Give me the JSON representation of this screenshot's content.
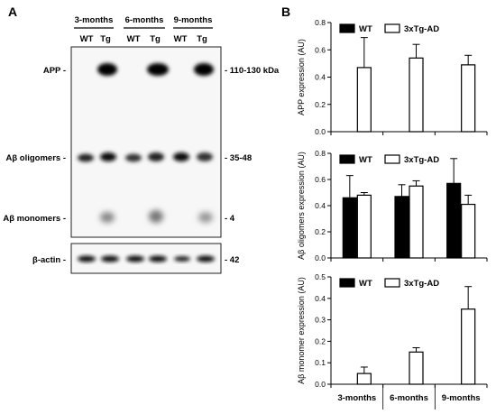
{
  "panels": {
    "a": "A",
    "b": "B"
  },
  "blot": {
    "timepoints": [
      "3-months",
      "6-months",
      "9-months"
    ],
    "lanes": [
      "WT",
      "Tg"
    ],
    "row_labels": [
      "APP -",
      "Aβ oligomers -",
      "Aβ monomers -",
      "β-actin -"
    ],
    "size_markers": [
      "- 110-130 kDa",
      "- 35-48",
      "- 4",
      "- 42"
    ]
  },
  "chart_data": [
    {
      "type": "bar",
      "categories": [
        "3-months",
        "6-months",
        "9-months"
      ],
      "series": [
        {
          "name": "WT",
          "values": [
            null,
            null,
            null
          ],
          "errors": [
            null,
            null,
            null
          ],
          "color": "#000000"
        },
        {
          "name": "3xTg-AD",
          "values": [
            0.47,
            0.54,
            0.49
          ],
          "errors": [
            0.22,
            0.1,
            0.07
          ],
          "color": "#ffffff"
        }
      ],
      "ylabel": "APP expression (AU)",
      "ylim": [
        0,
        0.8
      ],
      "yticks": [
        "0.0",
        "0.2",
        "0.4",
        "0.6",
        "0.8"
      ],
      "ytick_values": [
        0,
        0.2,
        0.4,
        0.6,
        0.8
      ],
      "legend": "top-left"
    },
    {
      "type": "bar",
      "categories": [
        "3-months",
        "6-months",
        "9-months"
      ],
      "series": [
        {
          "name": "WT",
          "values": [
            0.46,
            0.47,
            0.57
          ],
          "errors": [
            0.17,
            0.09,
            0.19
          ],
          "color": "#000000"
        },
        {
          "name": "3xTg-AD",
          "values": [
            0.48,
            0.55,
            0.41
          ],
          "errors": [
            0.02,
            0.04,
            0.07
          ],
          "color": "#ffffff"
        }
      ],
      "ylabel": "Aβ oligomers expression (AU)",
      "ylim": [
        0,
        0.8
      ],
      "yticks": [
        "0.0",
        "0.2",
        "0.4",
        "0.6",
        "0.8"
      ],
      "ytick_values": [
        0,
        0.2,
        0.4,
        0.6,
        0.8
      ],
      "legend": "top-left"
    },
    {
      "type": "bar",
      "categories": [
        "3-months",
        "6-months",
        "9-months"
      ],
      "series": [
        {
          "name": "WT",
          "values": [
            null,
            null,
            null
          ],
          "errors": [
            null,
            null,
            null
          ],
          "color": "#000000"
        },
        {
          "name": "3xTg-AD",
          "values": [
            0.05,
            0.15,
            0.35
          ],
          "errors": [
            0.03,
            0.02,
            0.105
          ],
          "color": "#ffffff"
        }
      ],
      "ylabel": "Aβ monomer expression (AU)",
      "ylim": [
        0,
        0.5
      ],
      "yticks": [
        "0.0",
        "0.1",
        "0.2",
        "0.3",
        "0.4",
        "0.5"
      ],
      "ytick_values": [
        0,
        0.1,
        0.2,
        0.3,
        0.4,
        0.5
      ],
      "legend": "top-left"
    }
  ]
}
